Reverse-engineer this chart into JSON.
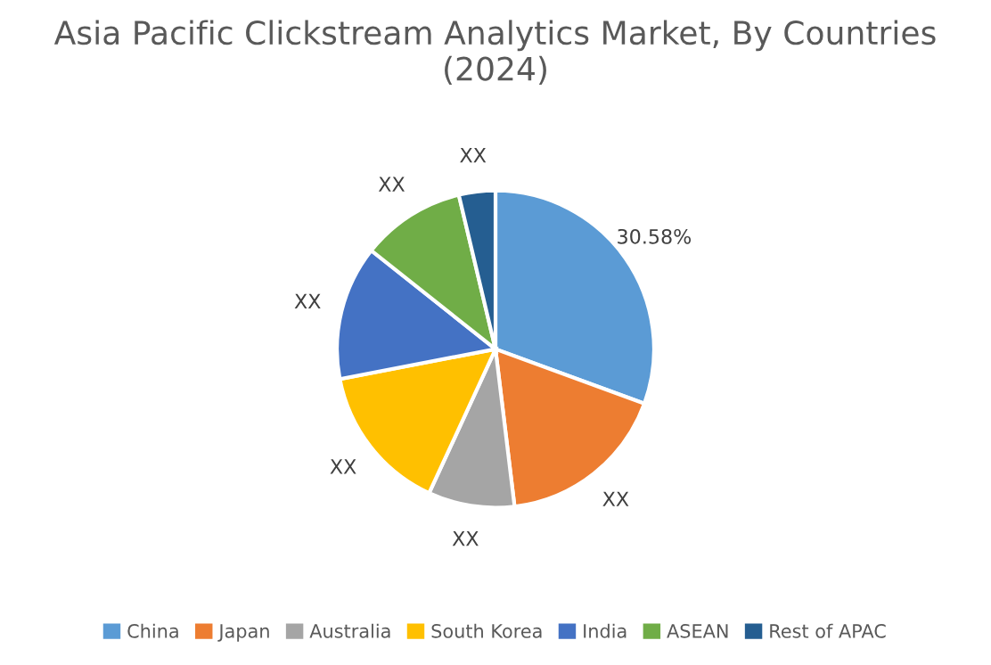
{
  "chart_data": {
    "type": "pie",
    "title": "Asia Pacific Clickstream Analytics Market, By Countries (2024)",
    "categories": [
      "China",
      "Japan",
      "Australia",
      "South Korea",
      "India",
      "ASEAN",
      "Rest of APAC"
    ],
    "values": [
      30.58,
      17.5,
      8.8,
      15.1,
      13.7,
      10.6,
      3.72
    ],
    "value_labels": [
      "30.58%",
      "XX",
      "XX",
      "XX",
      "XX",
      "XX",
      "XX"
    ],
    "colors": [
      "#5b9bd5",
      "#ed7d31",
      "#a5a5a5",
      "#ffc000",
      "#4472c4",
      "#70ad47",
      "#255e91"
    ],
    "legend": "bottom"
  }
}
